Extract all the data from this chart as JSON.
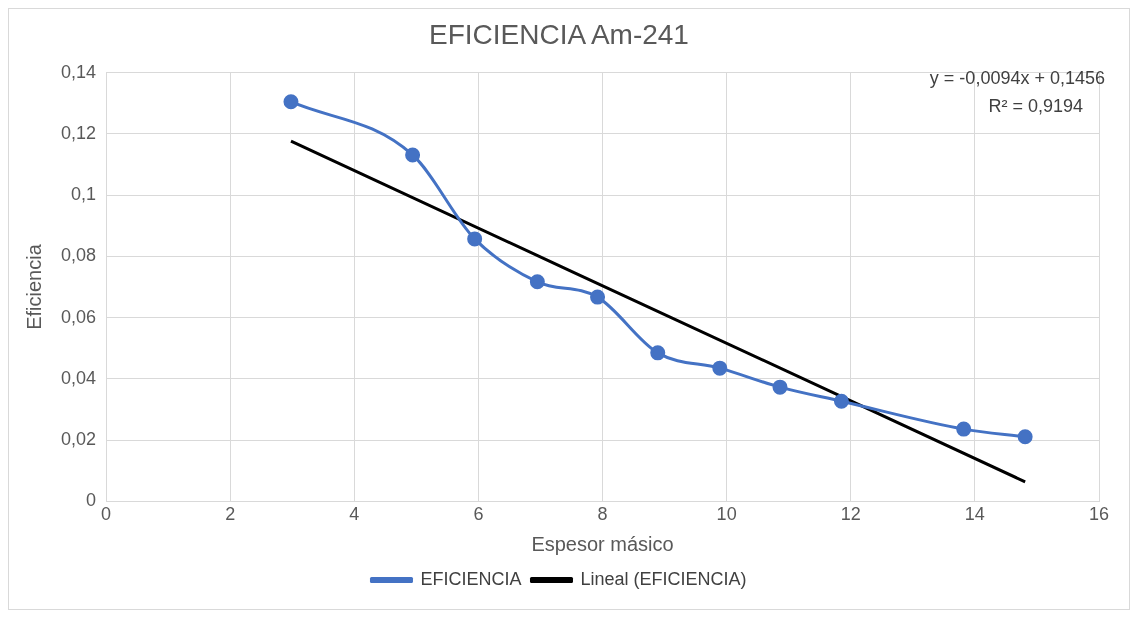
{
  "chart_data": {
    "type": "line",
    "title": "EFICIENCIA Am-241",
    "xlabel": "Espesor másico",
    "ylabel": "Eficiencia",
    "x": [
      2.98,
      4.94,
      5.94,
      6.95,
      7.92,
      8.89,
      9.89,
      10.86,
      11.85,
      13.82,
      14.81
    ],
    "series": [
      {
        "name": "EFICIENCIA",
        "color": "#4472c4",
        "values": [
          0.1305,
          0.1131,
          0.0857,
          0.0717,
          0.0667,
          0.0485,
          0.0435,
          0.0373,
          0.0327,
          0.0236,
          0.0211
        ],
        "marker": "circle"
      },
      {
        "name": "Lineal (EFICIENCIA)",
        "type": "line",
        "color": "#000000",
        "x": [
          2.98,
          14.81
        ],
        "values": [
          0.1176,
          0.0064
        ],
        "marker": "none"
      }
    ],
    "xlim": [
      0,
      16
    ],
    "xticks": [
      0,
      2,
      4,
      6,
      8,
      10,
      12,
      14,
      16
    ],
    "ylim": [
      0,
      0.14
    ],
    "yticks": [
      0,
      {
        "value": 0.02,
        "label": "0,02"
      },
      {
        "value": 0.04,
        "label": "0,04"
      },
      {
        "value": 0.06,
        "label": "0,06"
      },
      {
        "value": 0.08,
        "label": "0,08"
      },
      {
        "value": 0.1,
        "label": "0,1"
      },
      {
        "value": 0.12,
        "label": "0,12"
      },
      {
        "value": 0.14,
        "label": "0,14"
      }
    ],
    "grid": true,
    "legend": "bottom",
    "annotations": [
      "y = -0,0094x + 0,1456",
      "R² = 0,9194"
    ]
  }
}
